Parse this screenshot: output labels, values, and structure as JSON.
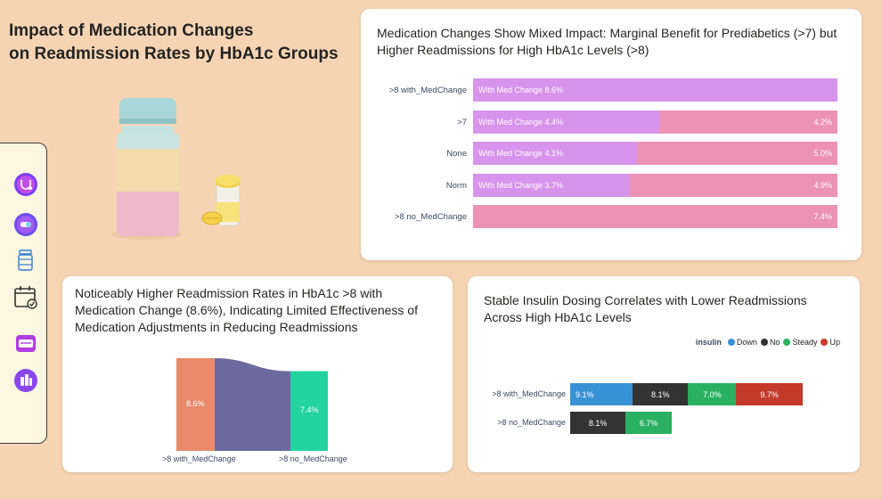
{
  "page": {
    "title_line1": "Impact of Medication Changes",
    "title_line2": "on Readmission Rates by HbA1c Groups"
  },
  "sidebar": {
    "icons": [
      "stethoscope-icon",
      "capsule-icon",
      "pill-bottle-icon",
      "calendar-check-icon",
      "medicine-box-icon",
      "hospital-icon"
    ]
  },
  "card1": {
    "title": "Medication Changes Show Mixed Impact: Marginal Benefit for Prediabetics (>7) but Higher Readmissions for High HbA1c Levels (>8)",
    "colors": {
      "with_change": "#d894ec",
      "no_change": "#ec92b4"
    },
    "rows": [
      {
        "label": ">8 with_MedChange",
        "left_label": "With Med Change 8.6%",
        "left_value": 8.6,
        "right_label": "",
        "right_value": 0
      },
      {
        "label": ">7",
        "left_label": "With Med Change 4.4%",
        "left_value": 4.4,
        "right_label": "4.2%",
        "right_value": 4.2
      },
      {
        "label": "None",
        "left_label": "With Med Change 4.1%",
        "left_value": 4.1,
        "right_label": "5.0%",
        "right_value": 5.0
      },
      {
        "label": "Norm",
        "left_label": "With Med Change 3.7%",
        "left_value": 3.7,
        "right_label": "4.9%",
        "right_value": 4.9
      },
      {
        "label": ">8 no_MedChange",
        "left_label": "",
        "left_value": 0,
        "right_label": "7.4%",
        "right_value": 7.4
      }
    ]
  },
  "card2": {
    "title": "Noticeably Higher Readmission Rates in HbA1c >8 with Medication Change (8.6%), Indicating Limited Effectiveness of Medication Adjustments in Reducing Readmissions",
    "nodes": [
      {
        "label": ">8 with_MedChange",
        "value_label": "8.6%",
        "value": 8.6,
        "color": "#e98a6b"
      },
      {
        "label": ">8 no_MedChange",
        "value_label": "7.4%",
        "value": 7.4,
        "color": "#22d3a0"
      }
    ],
    "link_color": "#6b6a9e"
  },
  "card3": {
    "title": "Stable Insulin Dosing Correlates with Lower Readmissions Across High HbA1c Levels",
    "legend_title": "insulin",
    "legend": [
      {
        "name": "Down",
        "color": "#3a92d6"
      },
      {
        "name": "No",
        "color": "#333333"
      },
      {
        "name": "Steady",
        "color": "#2ab061"
      },
      {
        "name": "Up",
        "color": "#c43a2b"
      }
    ],
    "rows": [
      {
        "label": ">8 with_MedChange",
        "segments": [
          {
            "series": "Down",
            "value": 9.1,
            "label": "9.1%"
          },
          {
            "series": "No",
            "value": 8.1,
            "label": "8.1%"
          },
          {
            "series": "Steady",
            "value": 7.0,
            "label": "7.0%"
          },
          {
            "series": "Up",
            "value": 9.7,
            "label": "9.7%"
          }
        ]
      },
      {
        "label": ">8 no_MedChange",
        "segments": [
          {
            "series": "No",
            "value": 8.1,
            "label": "8.1%"
          },
          {
            "series": "Steady",
            "value": 6.7,
            "label": "6.7%"
          }
        ]
      }
    ]
  }
}
